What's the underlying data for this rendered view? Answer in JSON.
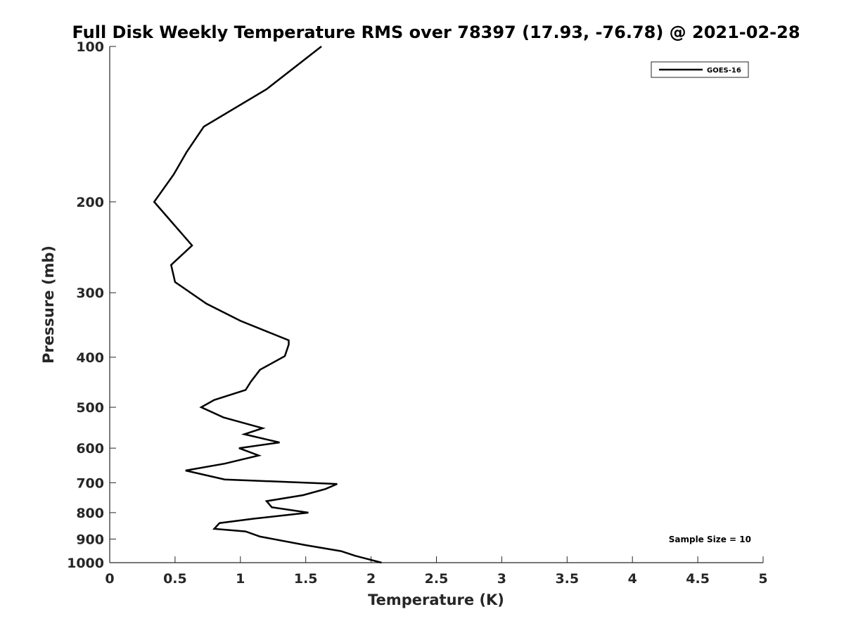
{
  "chart_data": {
    "type": "line",
    "title": "Full Disk Weekly Temperature RMS over 78397 (17.93, -76.78) @ 2021-02-28",
    "xlabel": "Temperature (K)",
    "ylabel": "Pressure (mb)",
    "xlim": [
      0,
      5
    ],
    "ylim": [
      100,
      1000
    ],
    "y_scale": "log",
    "y_reversed": true,
    "grid": false,
    "legend_position": "top-right",
    "x_ticks": [
      "0",
      "0.5",
      "1",
      "1.5",
      "2",
      "2.5",
      "3",
      "3.5",
      "4",
      "4.5",
      "5"
    ],
    "y_ticks": [
      "100",
      "200",
      "300",
      "400",
      "500",
      "600",
      "700",
      "800",
      "900",
      "1000"
    ],
    "series": [
      {
        "name": "GOES-16",
        "color": "#000000",
        "points": [
          [
            1.62,
            100
          ],
          [
            1.2,
            121
          ],
          [
            0.72,
            143
          ],
          [
            0.59,
            160
          ],
          [
            0.49,
            177
          ],
          [
            0.34,
            200
          ],
          [
            0.63,
            243
          ],
          [
            0.47,
            265
          ],
          [
            0.5,
            286
          ],
          [
            0.74,
            315
          ],
          [
            1.0,
            340
          ],
          [
            1.37,
            371
          ],
          [
            1.37,
            378
          ],
          [
            1.34,
            398
          ],
          [
            1.15,
            423
          ],
          [
            1.08,
            446
          ],
          [
            1.04,
            463
          ],
          [
            0.8,
            484
          ],
          [
            0.7,
            500
          ],
          [
            0.87,
            523
          ],
          [
            1.17,
            549
          ],
          [
            1.03,
            564
          ],
          [
            1.3,
            585
          ],
          [
            0.99,
            600
          ],
          [
            1.14,
            620
          ],
          [
            0.88,
            643
          ],
          [
            0.58,
            663
          ],
          [
            0.88,
            690
          ],
          [
            1.74,
            704
          ],
          [
            1.65,
            720
          ],
          [
            1.48,
            740
          ],
          [
            1.2,
            760
          ],
          [
            1.24,
            781
          ],
          [
            1.52,
            800
          ],
          [
            1.1,
            822
          ],
          [
            0.84,
            838
          ],
          [
            0.8,
            860
          ],
          [
            1.04,
            870
          ],
          [
            1.15,
            890
          ],
          [
            1.5,
            925
          ],
          [
            1.77,
            950
          ],
          [
            1.88,
            970
          ],
          [
            2.08,
            1000
          ]
        ]
      }
    ],
    "annotations": [
      "Sample Size = 10"
    ]
  }
}
